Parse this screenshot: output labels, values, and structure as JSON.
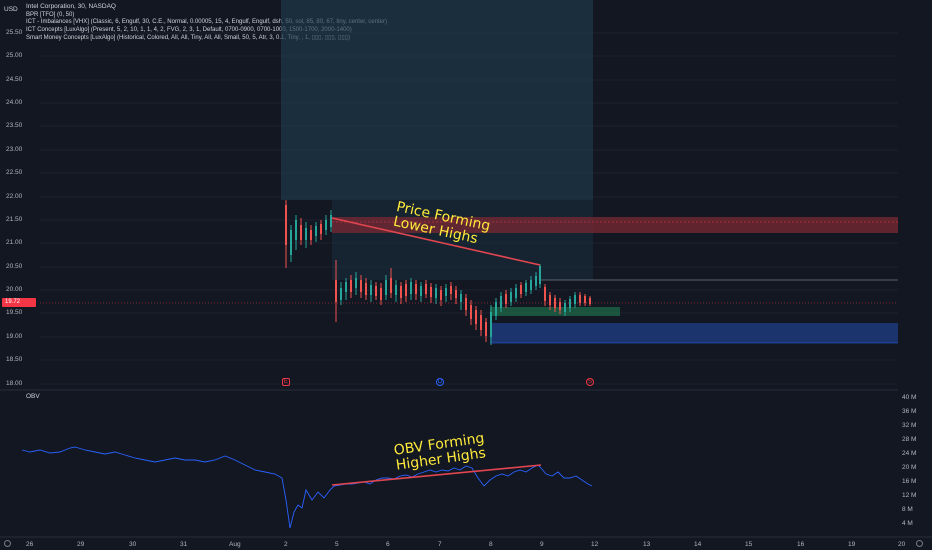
{
  "header": {
    "currency": "USD",
    "symbol_line": "Intel Corporation, 30, NASDAQ",
    "indicators": [
      "BPR [TFO] (0, 50)",
      "ICT - Imbalances [VHX] (Classic, 6, Engulf, 30, C.E., Normal, 0.00005, 15, 4, Engulf, Engulf, dsh, 50, sol, 85, 80, 67, tiny, center, center)",
      "ICT Concepts [LuxAlgo] (Present, 5, 2, 10, 1, 1, 4, 2, FVG, 2, 3, 1, Default, 0700-0900, 0700-1000, 1500-1700, 2000-1400)",
      "Smart Money Concepts [LuxAlgo] (Historical, Colored, All, All, Tiny, All, All, Small, 50, 5, Atr, 3, 0.1, Tiny, , 1, ▯▯▯, ▯▯▯, ▯▯▯)"
    ]
  },
  "price_axis": {
    "ticks": [
      "25.50",
      "25.00",
      "24.50",
      "24.00",
      "23.50",
      "23.00",
      "22.50",
      "22.00",
      "21.50",
      "21.00",
      "20.50",
      "20.00",
      "19.50",
      "19.00",
      "18.50",
      "18.00"
    ],
    "current_price": "19.72"
  },
  "obv_pane": {
    "label": "OBV",
    "ticks": [
      "40 M",
      "36 M",
      "32 M",
      "28 M",
      "24 M",
      "20 M",
      "16 M",
      "12 M",
      "8 M",
      "4 M"
    ]
  },
  "time_axis": {
    "ticks": [
      "26",
      "29",
      "30",
      "31",
      "Aug",
      "2",
      "5",
      "6",
      "7",
      "8",
      "9",
      "12",
      "13",
      "14",
      "15",
      "16",
      "19",
      "20"
    ]
  },
  "annotations": {
    "price_text_1": "Price Forming",
    "price_text_2": "Lower Highs",
    "obv_text_1": "OBV Forming",
    "obv_text_2": "Higher Highs"
  },
  "colors": {
    "background": "#131722",
    "up": "#26a69a",
    "down": "#ef5350",
    "annotation": "#ffeb3b",
    "trendline": "#e0464f",
    "obv_line": "#2962ff"
  },
  "icons": [
    "earnings-icon",
    "dividend-icon",
    "split-icon"
  ]
}
